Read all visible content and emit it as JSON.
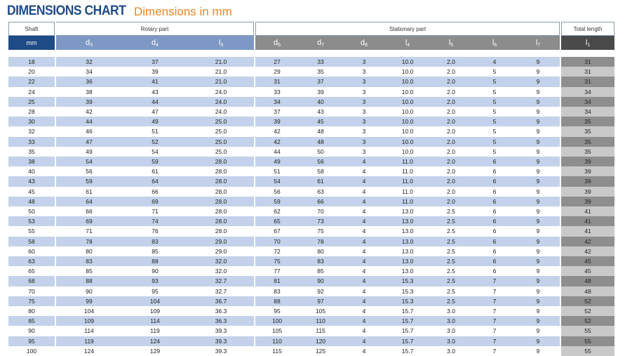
{
  "title": "DIMENSIONS CHART",
  "subtitle": "Dimensions in mm",
  "groups": {
    "shaft": "Shaft",
    "rotary": "Rotary part",
    "stationary": "Stationary part",
    "total": "Total length"
  },
  "units": {
    "shaft": "mm",
    "d3": "d",
    "d3_sub": "3",
    "d4": "d",
    "d4_sub": "4",
    "l3": "l",
    "l3_sub": "3",
    "d6": "d",
    "d6_sub": "6",
    "d7": "d",
    "d7_sub": "7",
    "d8": "d",
    "d8_sub": "8",
    "l4": "l",
    "l4_sub": "4",
    "l5": "l",
    "l5_sub": "5",
    "l6": "l",
    "l6_sub": "6",
    "l7": "l",
    "l7_sub": "7",
    "l1": "l",
    "l1_sub": "1"
  },
  "colors": {
    "title": "#1f4b86",
    "subtitle": "#e8871e",
    "shaft_header": "#1f4b86",
    "rotary_header": "#7d98c4",
    "stationary_header": "#8c8c8c",
    "total_header": "#4a4a4a",
    "row_alt": "#c3d2ea"
  },
  "rows": [
    [
      "18",
      "32",
      "37",
      "21.0",
      "27",
      "33",
      "3",
      "10.0",
      "2.0",
      "4",
      "9",
      "31"
    ],
    [
      "20",
      "34",
      "39",
      "21.0",
      "29",
      "35",
      "3",
      "10.0",
      "2.0",
      "5",
      "9",
      "31"
    ],
    [
      "22",
      "36",
      "41",
      "21.0",
      "31",
      "37",
      "3",
      "10.0",
      "2.0",
      "5",
      "9",
      "31"
    ],
    [
      "24",
      "38",
      "43",
      "24.0",
      "33",
      "39",
      "3",
      "10.0",
      "2.0",
      "5",
      "9",
      "34"
    ],
    [
      "25",
      "39",
      "44",
      "24.0",
      "34",
      "40",
      "3",
      "10.0",
      "2.0",
      "5",
      "9",
      "34"
    ],
    [
      "28",
      "42",
      "47",
      "24.0",
      "37",
      "43",
      "3",
      "10.0",
      "2.0",
      "5",
      "9",
      "34"
    ],
    [
      "30",
      "44",
      "49",
      "25.0",
      "39",
      "45",
      "3",
      "10.0",
      "2.0",
      "5",
      "9",
      "35"
    ],
    [
      "32",
      "46",
      "51",
      "25.0",
      "42",
      "48",
      "3",
      "10.0",
      "2.0",
      "5",
      "9",
      "35"
    ],
    [
      "33",
      "47",
      "52",
      "25.0",
      "42",
      "48",
      "3",
      "10.0",
      "2.0",
      "5",
      "9",
      "35"
    ],
    [
      "35",
      "49",
      "54",
      "25.0",
      "44",
      "50",
      "3",
      "10.0",
      "2.0",
      "5",
      "9",
      "35"
    ],
    [
      "38",
      "54",
      "59",
      "28.0",
      "49",
      "56",
      "4",
      "11.0",
      "2.0",
      "6",
      "9",
      "39"
    ],
    [
      "40",
      "56",
      "61",
      "28.0",
      "51",
      "58",
      "4",
      "11.0",
      "2.0",
      "6",
      "9",
      "39"
    ],
    [
      "43",
      "59",
      "64",
      "28.0",
      "54",
      "61",
      "4",
      "11.0",
      "2.0",
      "6",
      "9",
      "39"
    ],
    [
      "45",
      "61",
      "66",
      "28.0",
      "56",
      "63",
      "4",
      "11.0",
      "2.0",
      "6",
      "9",
      "39"
    ],
    [
      "48",
      "64",
      "69",
      "28.0",
      "59",
      "66",
      "4",
      "11.0",
      "2.0",
      "6",
      "9",
      "39"
    ],
    [
      "50",
      "66",
      "71",
      "28.0",
      "62",
      "70",
      "4",
      "13.0",
      "2.5",
      "6",
      "9",
      "41"
    ],
    [
      "53",
      "69",
      "74",
      "28.0",
      "65",
      "73",
      "4",
      "13.0",
      "2.5",
      "6",
      "9",
      "41"
    ],
    [
      "55",
      "71",
      "76",
      "28.0",
      "67",
      "75",
      "4",
      "13.0",
      "2.5",
      "6",
      "9",
      "41"
    ],
    [
      "58",
      "78",
      "83",
      "29.0",
      "70",
      "78",
      "4",
      "13.0",
      "2.5",
      "6",
      "9",
      "42"
    ],
    [
      "60",
      "80",
      "85",
      "29.0",
      "72",
      "80",
      "4",
      "13.0",
      "2.5",
      "6",
      "9",
      "42"
    ],
    [
      "63",
      "83",
      "88",
      "32.0",
      "75",
      "83",
      "4",
      "13.0",
      "2.5",
      "6",
      "9",
      "45"
    ],
    [
      "65",
      "85",
      "90",
      "32.0",
      "77",
      "85",
      "4",
      "13.0",
      "2.5",
      "6",
      "9",
      "45"
    ],
    [
      "68",
      "88",
      "93",
      "32.7",
      "81",
      "90",
      "4",
      "15.3",
      "2.5",
      "7",
      "9",
      "48"
    ],
    [
      "70",
      "90",
      "95",
      "32.7",
      "83",
      "92",
      "4",
      "15.3",
      "2.5",
      "7",
      "9",
      "48"
    ],
    [
      "75",
      "99",
      "104",
      "36.7",
      "88",
      "97",
      "4",
      "15.3",
      "2.5",
      "7",
      "9",
      "52"
    ],
    [
      "80",
      "104",
      "109",
      "36.3",
      "95",
      "105",
      "4",
      "15.7",
      "3.0",
      "7",
      "9",
      "52"
    ],
    [
      "85",
      "109",
      "114",
      "36.3",
      "100",
      "110",
      "4",
      "15.7",
      "3.0",
      "7",
      "9",
      "52"
    ],
    [
      "90",
      "114",
      "119",
      "39.3",
      "105",
      "115",
      "4",
      "15.7",
      "3.0",
      "7",
      "9",
      "55"
    ],
    [
      "95",
      "119",
      "124",
      "39.3",
      "110",
      "120",
      "4",
      "15.7",
      "3.0",
      "7",
      "9",
      "55"
    ],
    [
      "100",
      "124",
      "129",
      "39.3",
      "115",
      "125",
      "4",
      "15.7",
      "3.0",
      "7",
      "9",
      "55"
    ]
  ]
}
